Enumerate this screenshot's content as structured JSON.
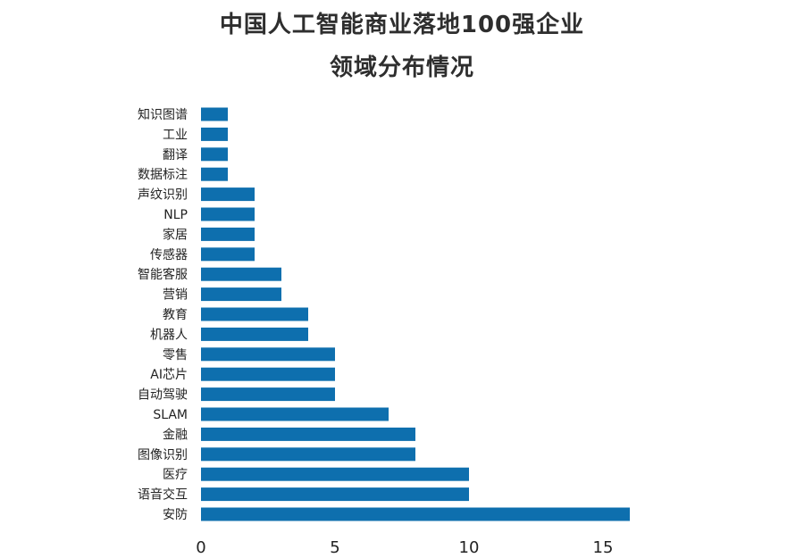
{
  "chart_data": {
    "type": "bar",
    "orientation": "horizontal",
    "title": "中国人工智能商业落地100强企业",
    "subtitle": "领域分布情况",
    "categories": [
      "知识图谱",
      "工业",
      "翻译",
      "数据标注",
      "声纹识别",
      "NLP",
      "家居",
      "传感器",
      "智能客服",
      "营销",
      "教育",
      "机器人",
      "零售",
      "AI芯片",
      "自动驾驶",
      "SLAM",
      "金融",
      "图像识别",
      "医疗",
      "语音交互",
      "安防"
    ],
    "values": [
      1,
      1,
      1,
      1,
      2,
      2,
      2,
      2,
      3,
      3,
      4,
      4,
      5,
      5,
      5,
      7,
      8,
      8,
      10,
      10,
      16
    ],
    "xlim": [
      0,
      16
    ],
    "xticks": [
      "0",
      "5",
      "10",
      "15"
    ],
    "xtick_values": [
      0,
      5,
      10,
      15
    ],
    "grid": false,
    "bar_color": "#0e6fae"
  }
}
